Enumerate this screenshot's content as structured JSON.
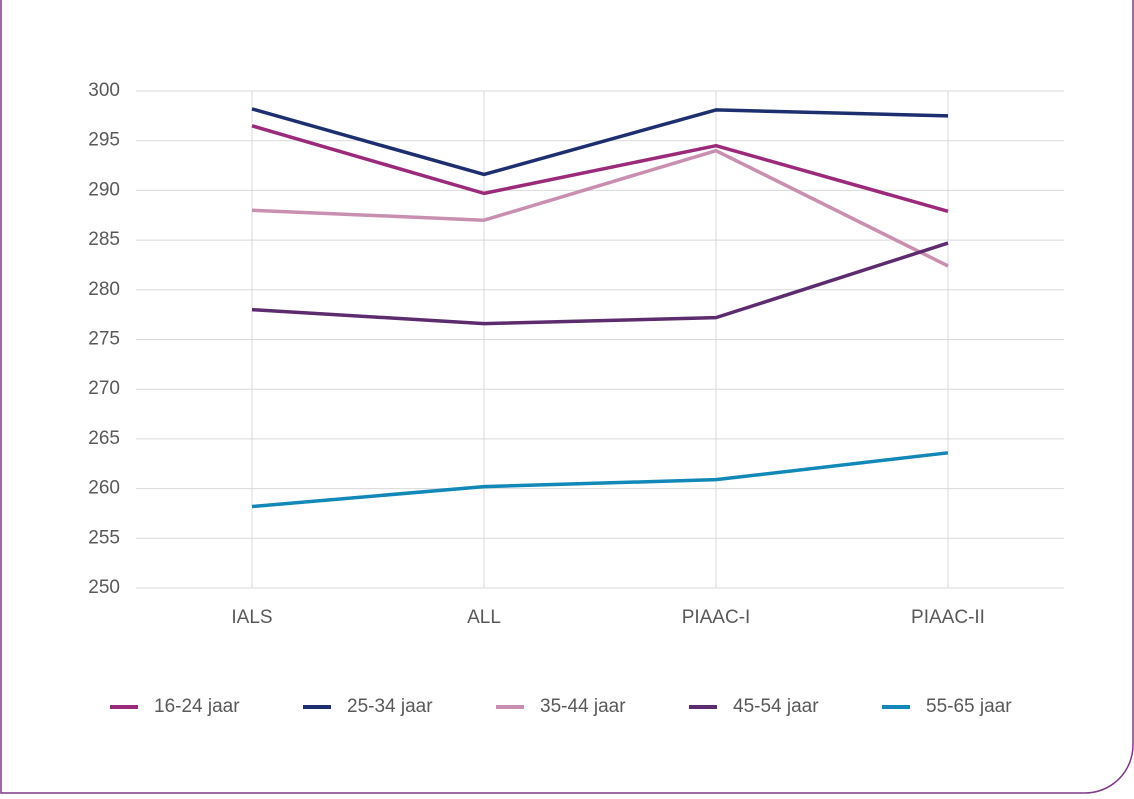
{
  "chart_data": {
    "type": "line",
    "categories": [
      "IALS",
      "ALL",
      "PIAAC-I",
      "PIAAC-II"
    ],
    "series": [
      {
        "name": "16-24 jaar",
        "color": "#9b2a7b",
        "values": [
          296.5,
          289.7,
          294.5,
          287.9
        ]
      },
      {
        "name": "25-34 jaar",
        "color": "#1d2f6f",
        "values": [
          298.2,
          291.6,
          298.1,
          297.5
        ]
      },
      {
        "name": "35-44 jaar",
        "color": "#c98fb0",
        "values": [
          288.0,
          287.0,
          294.0,
          282.4
        ]
      },
      {
        "name": "45-54 jaar",
        "color": "#5d2c6f",
        "values": [
          278.0,
          276.6,
          277.2,
          284.7
        ]
      },
      {
        "name": "55-65 jaar",
        "color": "#1188b8",
        "values": [
          258.2,
          260.2,
          260.9,
          263.6
        ]
      }
    ],
    "ylim": [
      250,
      300
    ],
    "yticks": [
      250,
      255,
      260,
      265,
      270,
      275,
      280,
      285,
      290,
      295,
      300
    ],
    "grid": true,
    "legend": "bottom"
  }
}
